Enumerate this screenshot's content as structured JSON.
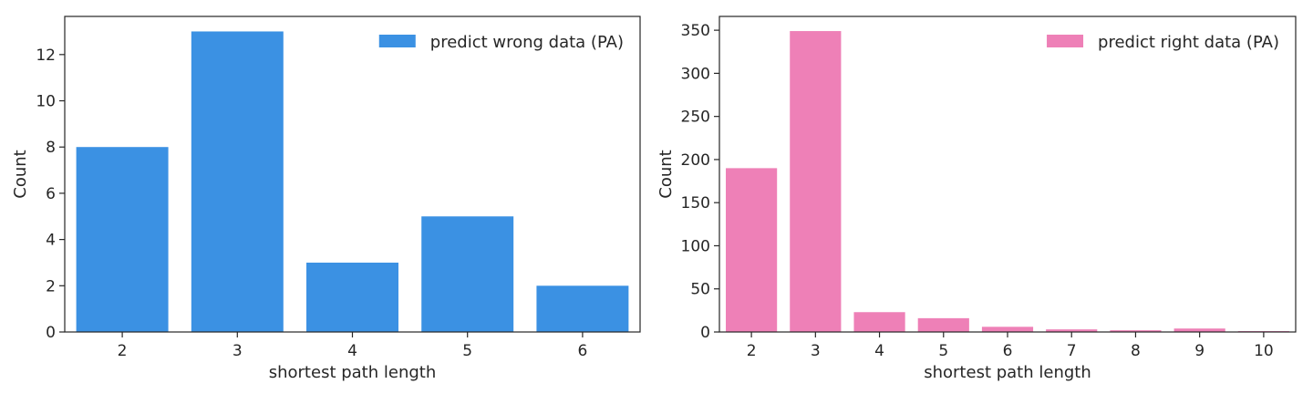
{
  "chart_data": [
    {
      "type": "bar",
      "categories": [
        "2",
        "3",
        "4",
        "5",
        "6"
      ],
      "values": [
        8,
        13,
        3,
        5,
        2
      ],
      "series": [
        {
          "name": "predict wrong data (PA)",
          "values": [
            8,
            13,
            3,
            5,
            2
          ]
        }
      ],
      "xlabel": "shortest path length",
      "ylabel": "Count",
      "ylim": [
        0,
        13.65
      ],
      "yticks": [
        0,
        2,
        4,
        6,
        8,
        10,
        12
      ],
      "grid": false,
      "legend": "upper right",
      "color": "#3b91e3"
    },
    {
      "type": "bar",
      "categories": [
        "2",
        "3",
        "4",
        "5",
        "6",
        "7",
        "8",
        "9",
        "10"
      ],
      "values": [
        190,
        349,
        23,
        16,
        6,
        3,
        2,
        4,
        1
      ],
      "series": [
        {
          "name": "predict right data (PA)",
          "values": [
            190,
            349,
            23,
            16,
            6,
            3,
            2,
            4,
            1
          ]
        }
      ],
      "xlabel": "shortest path length",
      "ylabel": "Count",
      "ylim": [
        0,
        366
      ],
      "yticks": [
        0,
        50,
        100,
        150,
        200,
        250,
        300,
        350
      ],
      "grid": false,
      "legend": "upper right",
      "color": "#ee80b7"
    }
  ]
}
